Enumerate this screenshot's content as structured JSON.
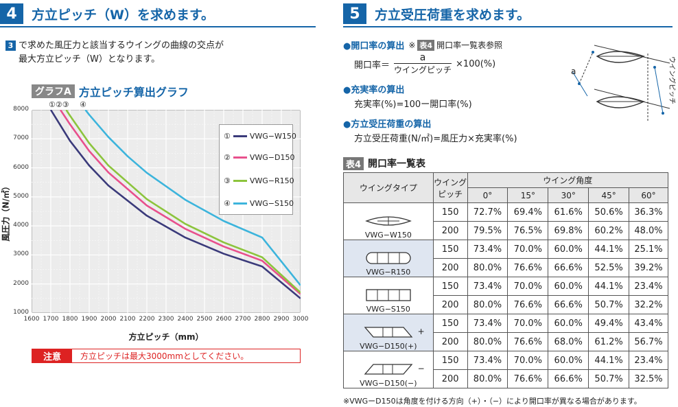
{
  "section4": {
    "number": "4",
    "title": "方立ピッチ（W）を求めます。",
    "step_number": "3",
    "step_line1": "で求めた風圧力と該当するウイングの曲線の交点が",
    "step_line2": "最大方立ピッチ（W）となります。",
    "graph_tag": "グラフA",
    "graph_title": "方立ピッチ算出グラフ",
    "curve_markers": "①②③",
    "curve_marker4": "④",
    "note_tag": "注意",
    "note_text": "方立ピッチは最大3000mmとしてください。"
  },
  "chart_data": {
    "type": "line",
    "title": "方立ピッチ算出グラフ",
    "xlabel": "方立ピッチ（mm）",
    "ylabel": "風圧力（N/㎡）",
    "xlim": [
      1600,
      3000
    ],
    "ylim": [
      1000,
      8000
    ],
    "x_ticks": [
      "1600",
      "1700",
      "1800",
      "1900",
      "2000",
      "2100",
      "2200",
      "2300",
      "2400",
      "2500",
      "2600",
      "2700",
      "2800",
      "2900",
      "3000"
    ],
    "y_ticks": [
      "1000",
      "2000",
      "3000",
      "4000",
      "5000",
      "6000",
      "7000",
      "8000"
    ],
    "grid": true,
    "legend_position": "top-right",
    "series": [
      {
        "name": "VWG−W150",
        "marker": "①",
        "color": "#3a3a7a",
        "x": [
          1700,
          1800,
          1900,
          2000,
          2200,
          2400,
          2600,
          2800,
          3000
        ],
        "values": [
          8000,
          6930,
          6080,
          5390,
          4350,
          3600,
          3040,
          2600,
          1500
        ]
      },
      {
        "name": "VWG−D150",
        "marker": "②",
        "color": "#e8508c",
        "x": [
          1750,
          1800,
          1900,
          2000,
          2200,
          2400,
          2600,
          2800,
          3000
        ],
        "values": [
          8000,
          7500,
          6580,
          5840,
          4700,
          3900,
          3290,
          2800,
          1650
        ]
      },
      {
        "name": "VWG−R150",
        "marker": "③",
        "color": "#8cc43c",
        "x": [
          1780,
          1800,
          1900,
          2000,
          2200,
          2400,
          2600,
          2800,
          3000
        ],
        "values": [
          8000,
          7800,
          6850,
          6080,
          4920,
          4070,
          3430,
          2920,
          1700
        ]
      },
      {
        "name": "VWG−S150",
        "marker": "④",
        "color": "#3cb4dc",
        "x": [
          1880,
          1900,
          2000,
          2100,
          2200,
          2400,
          2600,
          2800,
          3000
        ],
        "values": [
          8000,
          7830,
          7060,
          6400,
          5830,
          4900,
          4170,
          3600,
          1950
        ]
      }
    ]
  },
  "section5": {
    "number": "5",
    "title": "方立受圧荷重を求めます。",
    "b1_title": "●開口率の算出",
    "b1_ref_prefix": "※",
    "b1_ref_tag": "表4",
    "b1_ref_text": "開口率一覧表参照",
    "b1_lhs": "開口率＝",
    "b1_numerator": "a",
    "b1_denominator": "ウイングピッチ",
    "b1_rhs": "×100(%)",
    "b2_title": "●充実率の算出",
    "b2_formula": "充実率(%)=100ー開口率(%)",
    "b3_title": "●方立受圧荷重の算出",
    "b3_formula": "方立受圧荷重(N/㎡)=風圧力×充実率(%)",
    "diagram_label_a": "a",
    "diagram_label_pitch": "ウイングピッチ"
  },
  "table4": {
    "tag": "表4",
    "title": "開口率一覧表",
    "col_type": "ウイングタイプ",
    "col_pitch_line1": "ウイング",
    "col_pitch_line2": "ピッチ",
    "col_angle": "ウイング角度",
    "angles": [
      "0°",
      "15°",
      "30°",
      "45°",
      "60°"
    ],
    "types": [
      {
        "name": "VWG−W150",
        "rows": [
          {
            "pitch": "150",
            "vals": [
              "72.7%",
              "69.4%",
              "61.6%",
              "50.6%",
              "36.3%"
            ]
          },
          {
            "pitch": "200",
            "vals": [
              "79.5%",
              "76.5%",
              "69.8%",
              "60.2%",
              "48.0%"
            ]
          }
        ]
      },
      {
        "name": "VWG−R150",
        "rows": [
          {
            "pitch": "150",
            "vals": [
              "73.4%",
              "70.0%",
              "60.0%",
              "44.1%",
              "25.1%"
            ]
          },
          {
            "pitch": "200",
            "vals": [
              "80.0%",
              "76.6%",
              "66.6%",
              "52.5%",
              "39.2%"
            ]
          }
        ]
      },
      {
        "name": "VWG−S150",
        "rows": [
          {
            "pitch": "150",
            "vals": [
              "73.4%",
              "70.0%",
              "60.0%",
              "44.1%",
              "23.4%"
            ]
          },
          {
            "pitch": "200",
            "vals": [
              "80.0%",
              "76.6%",
              "66.6%",
              "50.7%",
              "32.2%"
            ]
          }
        ]
      },
      {
        "name": "VWG−D150(+)",
        "rows": [
          {
            "pitch": "150",
            "vals": [
              "73.4%",
              "70.0%",
              "60.0%",
              "49.4%",
              "43.4%"
            ]
          },
          {
            "pitch": "200",
            "vals": [
              "80.0%",
              "76.6%",
              "68.0%",
              "61.2%",
              "56.7%"
            ]
          }
        ]
      },
      {
        "name": "VWG−D150(−)",
        "rows": [
          {
            "pitch": "150",
            "vals": [
              "73.4%",
              "70.0%",
              "60.0%",
              "44.1%",
              "23.4%"
            ]
          },
          {
            "pitch": "200",
            "vals": [
              "80.0%",
              "76.6%",
              "66.6%",
              "50.7%",
              "32.5%"
            ]
          }
        ]
      }
    ],
    "sign_plus": "+",
    "sign_minus": "−",
    "footnote": "※VWGーD150は角度を付ける方向（+）・（−）により開口率が異なる場合があります。"
  }
}
